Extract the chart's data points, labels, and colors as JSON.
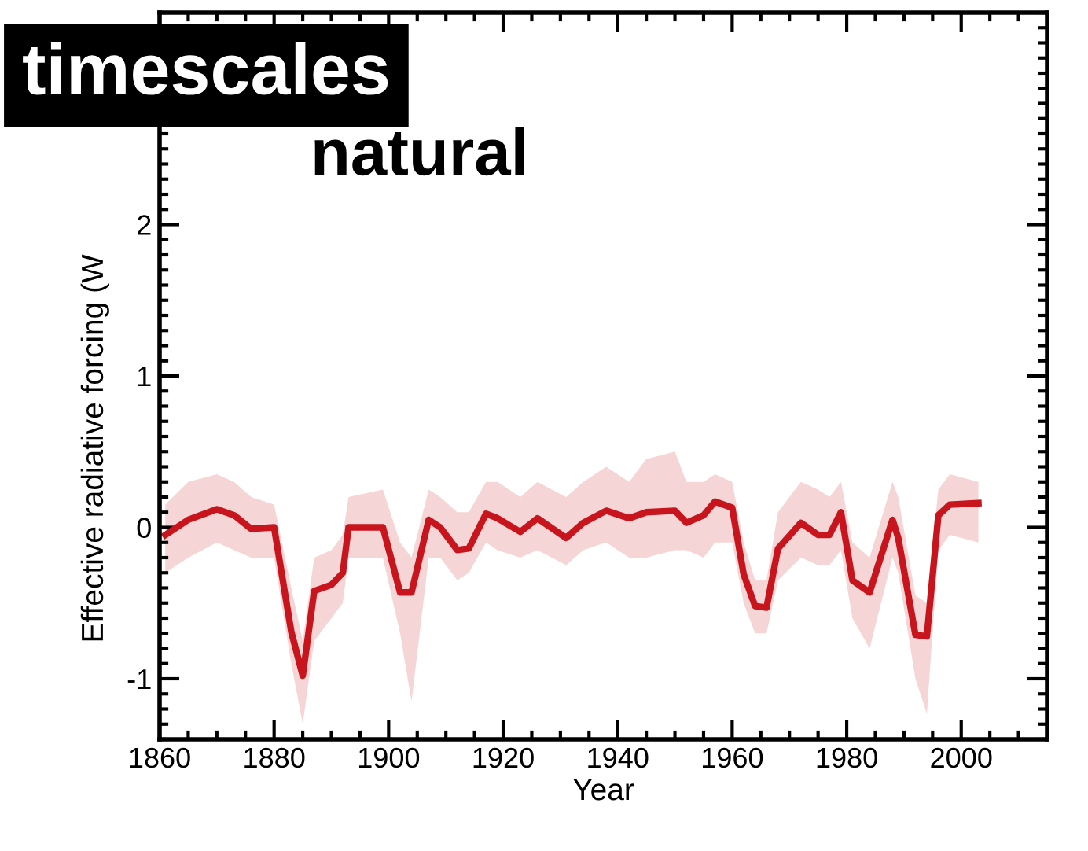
{
  "chart_data": {
    "type": "line",
    "xlabel": "Year",
    "ylabel": "Effective radiative forcing (W",
    "annotations": [
      "timescales",
      "natural"
    ],
    "xlim": [
      1860,
      2015
    ],
    "xticks": [
      1860,
      1880,
      1900,
      1920,
      1940,
      1960,
      1980,
      2000
    ],
    "ylim": [
      -1.4,
      3.4
    ],
    "yticks": [
      -1,
      0,
      1,
      2
    ],
    "grid": false,
    "legend": false,
    "x": [
      1861,
      1865,
      1870,
      1873,
      1876,
      1880,
      1883,
      1885,
      1887,
      1890,
      1892,
      1893,
      1899,
      1902,
      1904,
      1907,
      1909,
      1912,
      1914,
      1917,
      1919,
      1923,
      1926,
      1931,
      1934,
      1938,
      1942,
      1945,
      1950,
      1952,
      1955,
      1957,
      1960,
      1962,
      1964,
      1966,
      1968,
      1972,
      1975,
      1977,
      1979,
      1981,
      1984,
      1988,
      1989,
      1992,
      1994,
      1996,
      1998,
      2003
    ],
    "series": [
      {
        "color": "#c8141c",
        "line_style": "solid",
        "values": [
          -0.05,
          0.05,
          0.12,
          0.08,
          -0.01,
          0.0,
          -0.69,
          -0.98,
          -0.42,
          -0.38,
          -0.3,
          0.0,
          0.0,
          -0.43,
          -0.43,
          0.05,
          0.0,
          -0.15,
          -0.14,
          0.09,
          0.06,
          -0.03,
          0.06,
          -0.07,
          0.03,
          0.11,
          0.06,
          0.1,
          0.11,
          0.03,
          0.08,
          0.17,
          0.13,
          -0.31,
          -0.52,
          -0.53,
          -0.14,
          0.03,
          -0.05,
          -0.05,
          0.1,
          -0.35,
          -0.43,
          0.05,
          -0.07,
          -0.71,
          -0.72,
          0.08,
          0.15,
          0.16
        ],
        "lower": [
          -0.3,
          -0.2,
          -0.1,
          -0.15,
          -0.2,
          -0.2,
          -0.9,
          -1.3,
          -0.75,
          -0.6,
          -0.5,
          -0.2,
          -0.2,
          -0.7,
          -1.15,
          -0.2,
          -0.2,
          -0.35,
          -0.3,
          -0.1,
          -0.15,
          -0.2,
          -0.15,
          -0.25,
          -0.15,
          -0.1,
          -0.2,
          -0.2,
          -0.15,
          -0.15,
          -0.2,
          -0.1,
          -0.1,
          -0.5,
          -0.7,
          -0.7,
          -0.35,
          -0.2,
          -0.25,
          -0.25,
          -0.15,
          -0.6,
          -0.8,
          -0.2,
          -0.3,
          -1.0,
          -1.23,
          -0.15,
          -0.05,
          -0.1
        ],
        "upper": [
          0.15,
          0.3,
          0.35,
          0.3,
          0.2,
          0.15,
          -0.4,
          -0.75,
          -0.2,
          -0.15,
          -0.05,
          0.2,
          0.25,
          -0.1,
          -0.2,
          0.25,
          0.2,
          0.1,
          0.1,
          0.3,
          0.3,
          0.2,
          0.3,
          0.2,
          0.3,
          0.4,
          0.3,
          0.45,
          0.5,
          0.3,
          0.3,
          0.35,
          0.3,
          -0.1,
          -0.35,
          -0.35,
          0.1,
          0.3,
          0.25,
          0.2,
          0.3,
          -0.1,
          -0.2,
          0.3,
          0.2,
          -0.45,
          -0.5,
          0.25,
          0.35,
          0.3
        ]
      }
    ]
  }
}
